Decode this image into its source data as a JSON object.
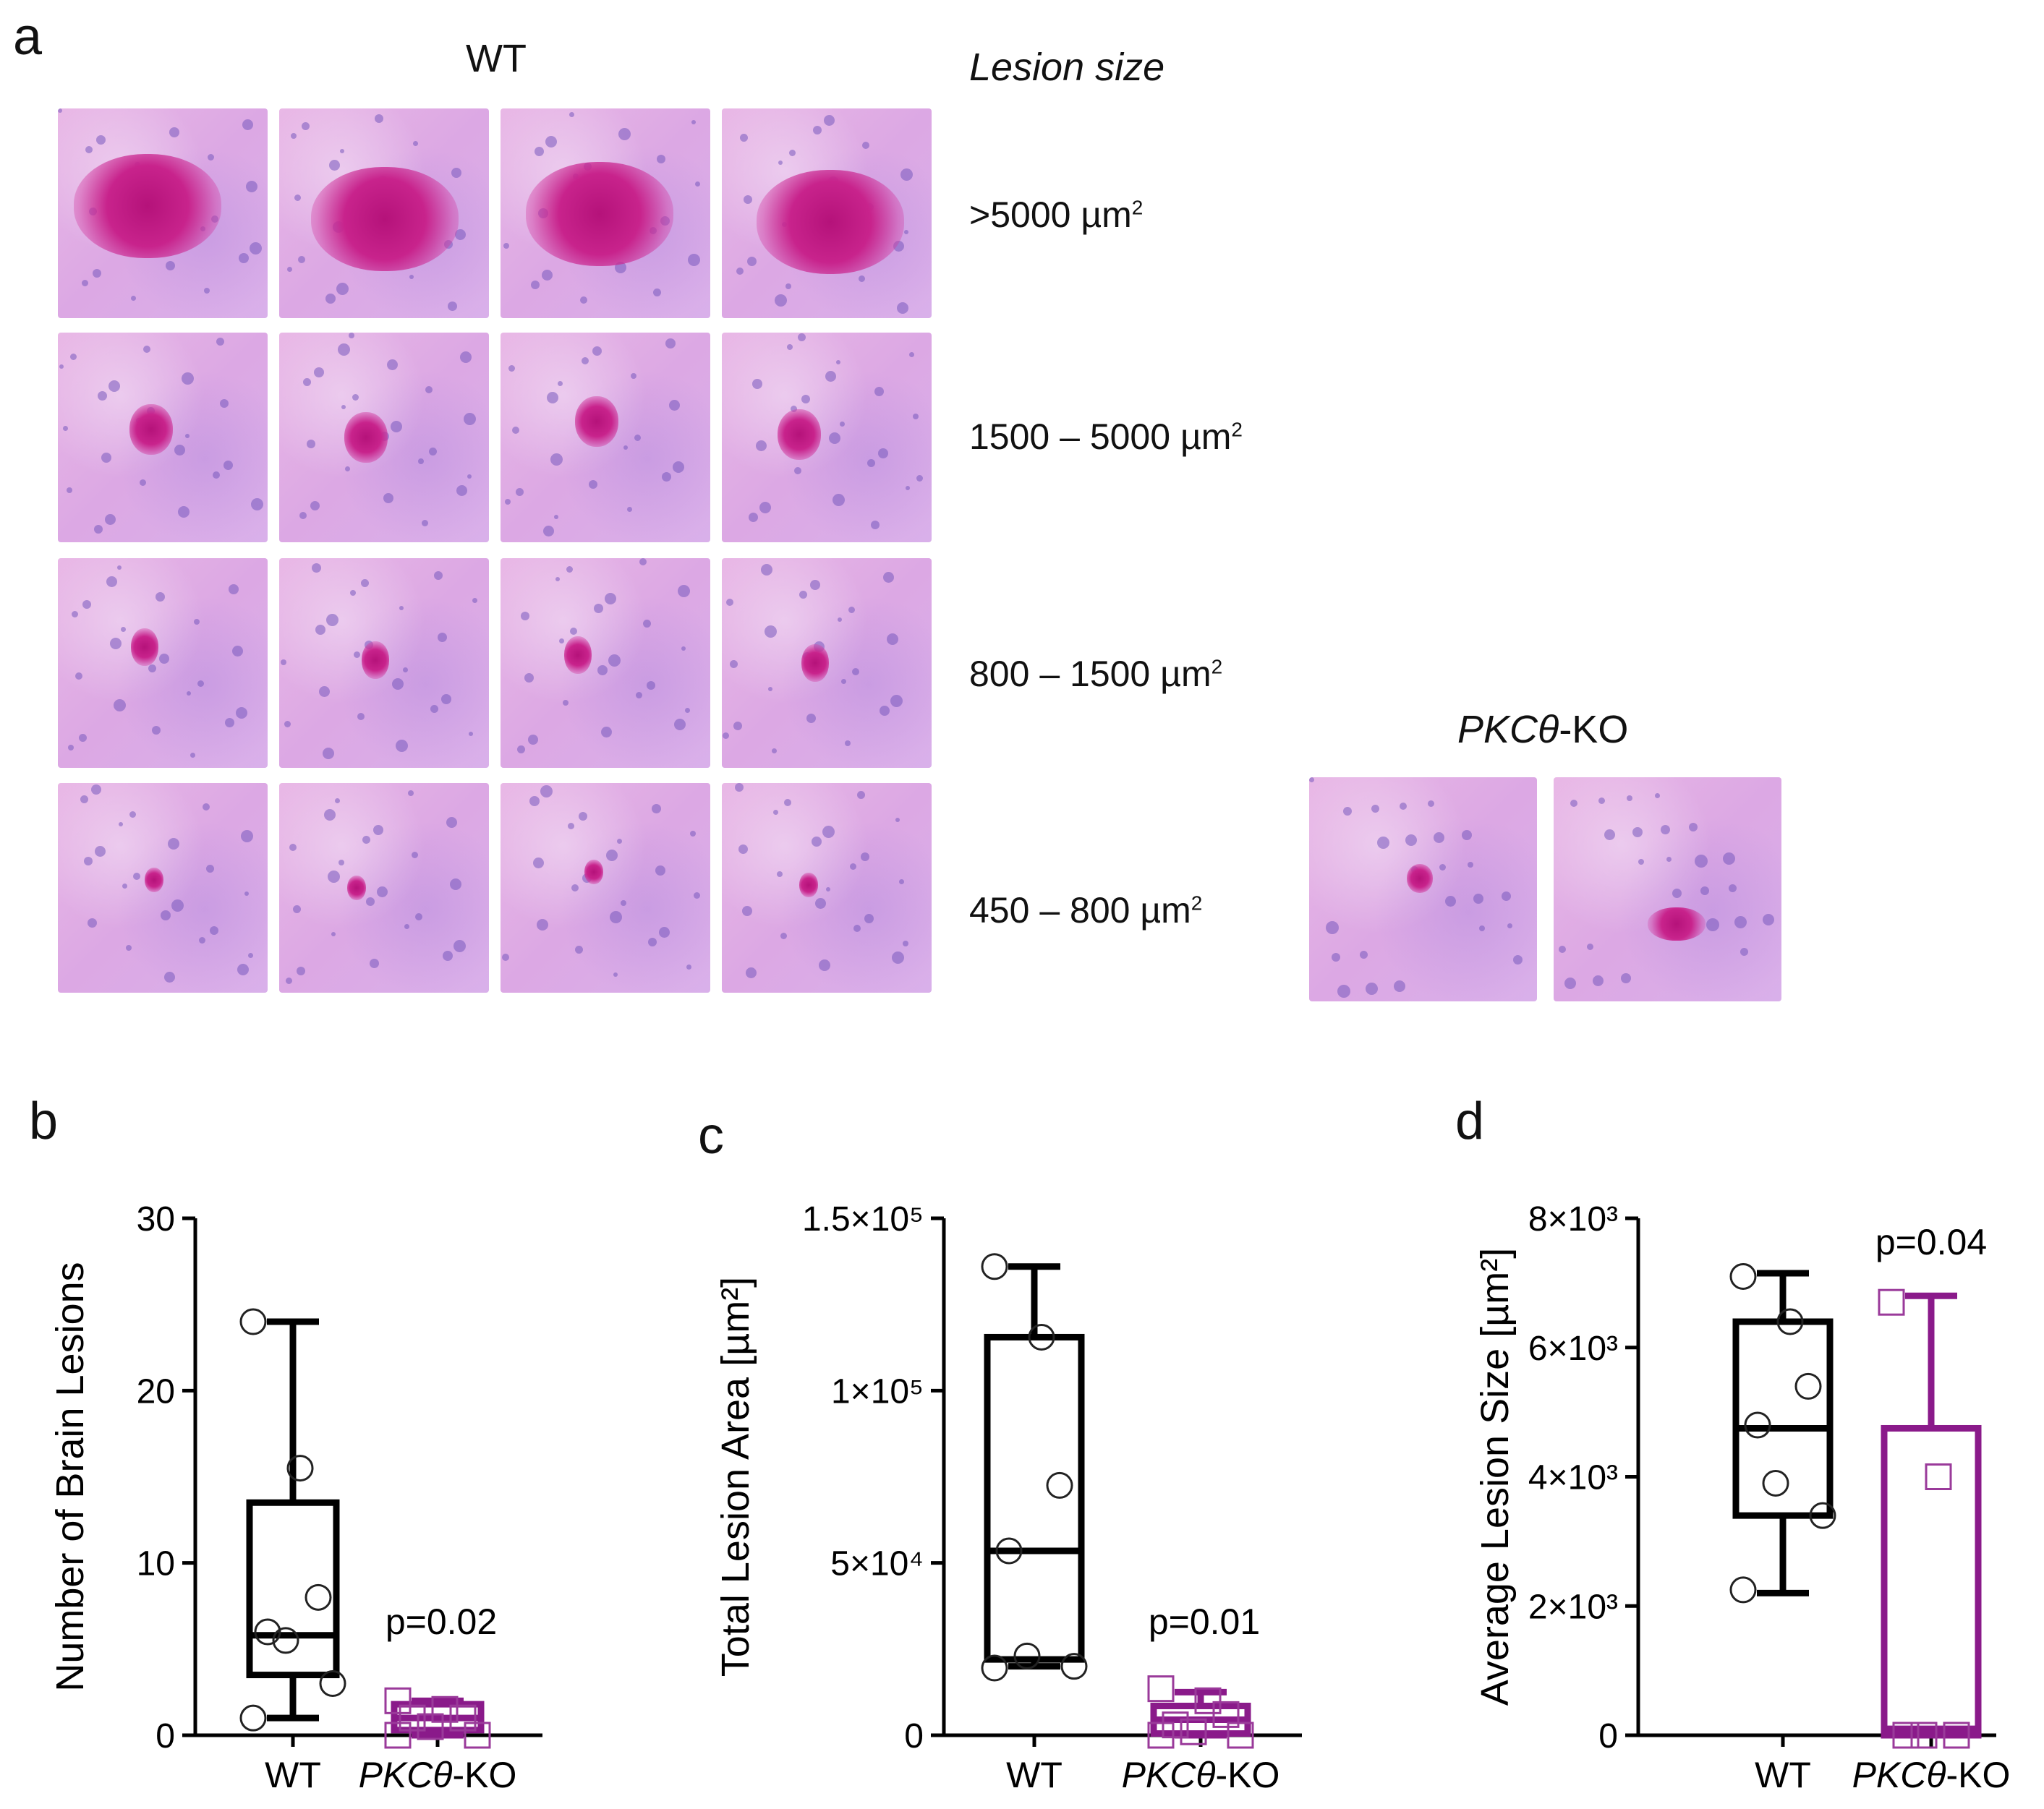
{
  "figure": {
    "panel_a": {
      "letter": "a",
      "wt_header": "WT",
      "lesion_size_header": "Lesion size",
      "ko_header_italic": "PKCθ",
      "ko_header_suffix": "-KO",
      "size_bins": [
        {
          "label": ">5000 µm",
          "sup": "2"
        },
        {
          "label": "1500 – 5000 µm",
          "sup": "2"
        },
        {
          "label": "800 – 1500 µm",
          "sup": "2"
        },
        {
          "label": "450 – 800 µm",
          "sup": "2"
        }
      ]
    },
    "panel_b": {
      "letter": "b"
    },
    "panel_c": {
      "letter": "c"
    },
    "panel_d": {
      "letter": "d"
    }
  },
  "chart_data": [
    {
      "type": "box",
      "panel": "b",
      "ylabel": "Number of Brain Lesions",
      "ylim": [
        0,
        30
      ],
      "yticks": [
        "0",
        "10",
        "20",
        "30"
      ],
      "categories": [
        "WT",
        "PKCθ-KO"
      ],
      "p_value": "p=0.02",
      "series": [
        {
          "name": "WT",
          "marker": "circle",
          "color": "#000000",
          "min": 1,
          "q1": 3.5,
          "median": 5.8,
          "q3": 13.5,
          "max": 24,
          "points": [
            24,
            15.5,
            8,
            6,
            5.5,
            3,
            1
          ]
        },
        {
          "name": "PKCθ-KO",
          "marker": "square",
          "color": "#8a1a8a",
          "min": 0,
          "q1": 0.3,
          "median": 1,
          "q3": 1.8,
          "max": 2,
          "points": [
            2,
            1.5,
            1,
            1,
            0.5,
            0,
            0
          ]
        }
      ]
    },
    {
      "type": "box",
      "panel": "c",
      "ylabel": "Total Lesion Area [µm²]",
      "ylim": [
        0,
        150000
      ],
      "yticks": [
        "0",
        "5×10⁴",
        "1×10⁵",
        "1.5×10⁵"
      ],
      "categories": [
        "WT",
        "PKCθ-KO"
      ],
      "p_value": "p=0.01",
      "series": [
        {
          "name": "WT",
          "marker": "circle",
          "color": "#000000",
          "min": 20000,
          "q1": 22000,
          "median": 53500,
          "q3": 115500,
          "max": 136000,
          "points": [
            136000,
            115500,
            72500,
            53500,
            23000,
            20000,
            19500
          ]
        },
        {
          "name": "PKCθ-KO",
          "marker": "square",
          "color": "#8a1a8a",
          "min": 0,
          "q1": 500,
          "median": 4500,
          "q3": 8500,
          "max": 12500,
          "points": [
            13500,
            10000,
            6000,
            3000,
            1000,
            0,
            0
          ]
        }
      ]
    },
    {
      "type": "box",
      "panel": "d",
      "ylabel": "Average Lesion Size [µm²]",
      "ylim": [
        0,
        8000
      ],
      "yticks": [
        "0",
        "2×10³",
        "4×10³",
        "6×10³",
        "8×10³"
      ],
      "categories": [
        "WT",
        "PKCθ-KO"
      ],
      "p_value": "p=0.04",
      "series": [
        {
          "name": "WT",
          "marker": "circle",
          "color": "#000000",
          "min": 2200,
          "q1": 3400,
          "median": 4750,
          "q3": 6400,
          "max": 7150,
          "points": [
            7100,
            6400,
            5400,
            4800,
            3900,
            3400,
            2250
          ]
        },
        {
          "name": "PKCθ-KO",
          "marker": "square",
          "color": "#8a1a8a",
          "min": 0,
          "q1": 0,
          "median": 100,
          "q3": 4750,
          "max": 6800,
          "points": [
            6700,
            4000,
            0,
            0,
            0
          ]
        }
      ]
    }
  ]
}
